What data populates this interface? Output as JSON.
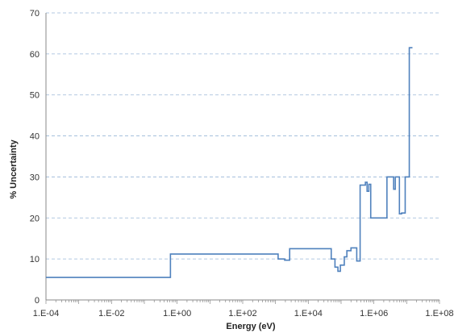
{
  "chart_data": {
    "type": "line",
    "title": "",
    "xlabel": "Energy (eV)",
    "ylabel": "% Uncertainty",
    "x_scale": "log",
    "xlim": [
      0.0001,
      100000000
    ],
    "ylim": [
      0,
      70
    ],
    "y_ticks": [
      0,
      10,
      20,
      30,
      40,
      50,
      60,
      70
    ],
    "x_tick_labels": [
      "1.E-04",
      "1.E-02",
      "1.E+00",
      "1.E+02",
      "1.E+04",
      "1.E+06",
      "1.E+08"
    ],
    "grid": "horizontal dashed",
    "legend": "none",
    "series": [
      {
        "color": "#4f81bd",
        "step": true,
        "x": [
          0.0001,
          0.625,
          1200,
          1900,
          2700,
          50000,
          65000,
          80000,
          95000,
          125000,
          150000,
          200000,
          300000,
          380000,
          550000,
          620000,
          700000,
          800000,
          2500000,
          4000000,
          4500000,
          6000000,
          7000000,
          9000000,
          12000000,
          15000000
        ],
        "y": [
          5.5,
          11.2,
          10.0,
          9.7,
          12.5,
          10.0,
          8.0,
          7.0,
          8.5,
          10.5,
          12.0,
          12.7,
          9.5,
          28.0,
          28.7,
          26.5,
          28.2,
          20.0,
          30.0,
          27.0,
          30.0,
          21.0,
          21.2,
          30.0,
          61.5,
          61.5
        ]
      }
    ]
  }
}
